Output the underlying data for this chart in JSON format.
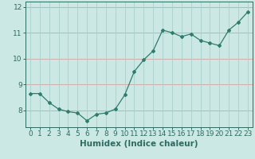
{
  "x": [
    0,
    1,
    2,
    3,
    4,
    5,
    6,
    7,
    8,
    9,
    10,
    11,
    12,
    13,
    14,
    15,
    16,
    17,
    18,
    19,
    20,
    21,
    22,
    23
  ],
  "y": [
    8.65,
    8.65,
    8.3,
    8.05,
    7.95,
    7.9,
    7.6,
    7.85,
    7.9,
    8.05,
    8.6,
    9.5,
    9.95,
    10.3,
    11.1,
    11.0,
    10.85,
    10.95,
    10.7,
    10.6,
    10.5,
    11.1,
    11.4,
    11.8
  ],
  "line_color": "#2e7d6e",
  "marker": "D",
  "marker_size": 2.0,
  "bg_color": "#cce8e4",
  "grid_color_major": "#aacfcb",
  "grid_color_red": "#d4a0a0",
  "axes_color": "#2e6b60",
  "xlabel": "Humidex (Indice chaleur)",
  "xlim": [
    -0.5,
    23.5
  ],
  "ylim": [
    7.35,
    12.2
  ],
  "yticks": [
    8,
    9,
    10,
    11,
    12
  ],
  "linewidth": 0.9,
  "xlabel_fontsize": 7.5,
  "tick_fontsize": 6.5
}
